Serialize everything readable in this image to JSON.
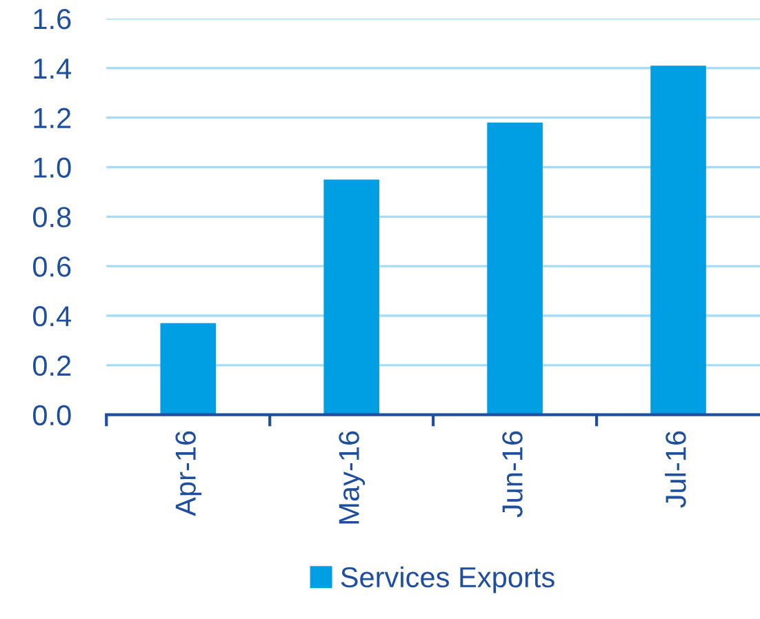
{
  "chart_data": {
    "type": "bar",
    "categories": [
      "Apr-16",
      "May-16",
      "Jun-16",
      "Jul-16"
    ],
    "series": [
      {
        "name": "Services Exports",
        "color": "#009fe3",
        "values": [
          0.37,
          0.95,
          1.18,
          1.41
        ]
      }
    ],
    "ylim": [
      0,
      1.6
    ],
    "yticks": [
      {
        "value": 0,
        "label": "0.0"
      },
      {
        "value": 0.2,
        "label": "0.2"
      },
      {
        "value": 0.4,
        "label": "0.4"
      },
      {
        "value": 0.6,
        "label": "0.6"
      },
      {
        "value": 0.8,
        "label": "0.8"
      },
      {
        "value": 1.0,
        "label": "1.0"
      },
      {
        "value": 1.2,
        "label": "1.2"
      },
      {
        "value": 1.4,
        "label": "1.4"
      },
      {
        "value": 1.6,
        "label": "1.6"
      }
    ],
    "grid": "y",
    "legend": "bottom"
  }
}
